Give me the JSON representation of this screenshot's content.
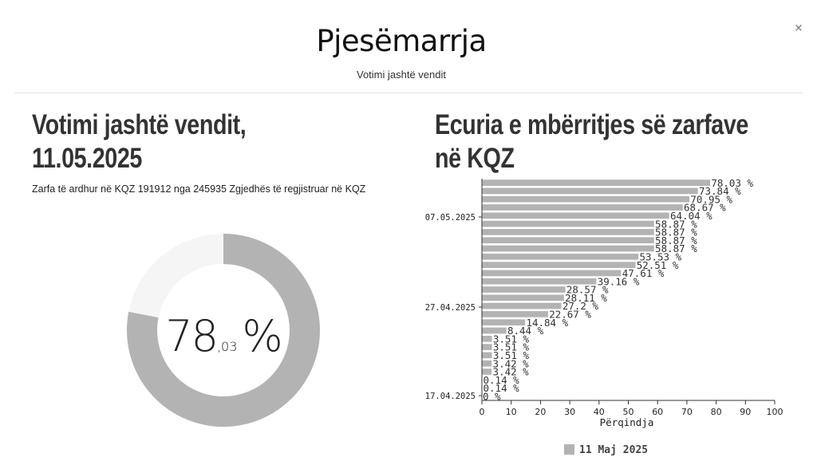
{
  "modal": {
    "title": "Pjesëmarrja",
    "subtitle": "Votimi jashtë vendit",
    "close_label": "×"
  },
  "left": {
    "heading": "Votimi jashtë vendit, 11.05.2025",
    "description": "Zarfa të ardhur në KQZ 191912 nga 245935 Zgjedhës të regjistruar në KQZ",
    "donut": {
      "value_int": "78",
      "value_dec": ",03",
      "unit": "%",
      "fraction": 0.7803,
      "color": "#b3b3b3",
      "track_color": "#f5f5f5"
    }
  },
  "right": {
    "heading": "Ecuria e mbërritjes së zarfave në KQZ"
  },
  "chart_data": {
    "type": "bar",
    "orientation": "horizontal",
    "xlabel": "Përqindja",
    "ylabel": "",
    "xlim": [
      0,
      100
    ],
    "x_ticks": [
      0,
      10,
      20,
      30,
      40,
      50,
      60,
      70,
      80,
      90,
      100
    ],
    "y_tick_labels": [
      "07.05.2025",
      "27.04.2025",
      "17.04.2025"
    ],
    "series": [
      {
        "name": "11 Maj 2025",
        "color": "#b3b3b3",
        "values": [
          78.03,
          73.84,
          70.95,
          68.67,
          64.04,
          58.87,
          58.87,
          58.87,
          58.87,
          53.53,
          52.51,
          47.61,
          39.16,
          28.57,
          28.11,
          27.2,
          22.67,
          14.84,
          8.44,
          3.51,
          3.51,
          3.51,
          3.42,
          3.42,
          0.14,
          0.14,
          0
        ]
      }
    ],
    "labels": [
      "78.03 %",
      "73.84 %",
      "70.95 %",
      "68.67 %",
      "64.04 %",
      "58.87 %",
      "58.87 %",
      "58.87 %",
      "58.87 %",
      "53.53 %",
      "52.51 %",
      "47.61 %",
      "39.16 %",
      "28.57 %",
      "28.11 %",
      "27.2 %",
      "22.67 %",
      "14.84 %",
      "8.44 %",
      "3.51 %",
      "3.51 %",
      "3.51 %",
      "3.42 %",
      "3.42 %",
      "0.14 %",
      "0.14 %",
      "0 %"
    ],
    "legend_position": "bottom",
    "grid": false
  }
}
